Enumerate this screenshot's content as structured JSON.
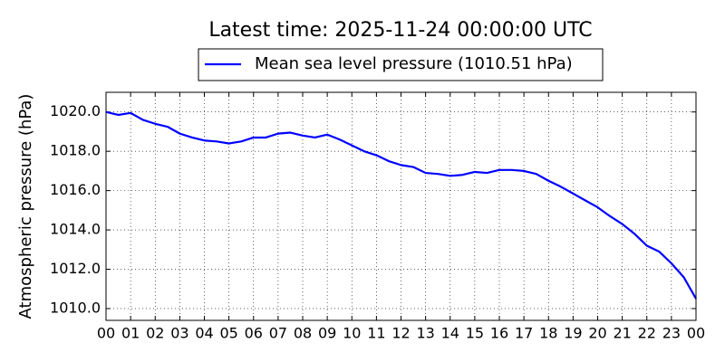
{
  "chart_data": {
    "type": "line",
    "title": "Latest time: 2025-11-24 00:00:00 UTC",
    "y_label": "Atmospheric pressure (hPa)",
    "grid": true,
    "legend": "upper center",
    "x": [
      0,
      0.5,
      1,
      1.5,
      2,
      2.5,
      3,
      3.5,
      4,
      4.5,
      5,
      5.5,
      6,
      6.5,
      7,
      7.5,
      8,
      8.5,
      9,
      9.5,
      10,
      10.5,
      11,
      11.5,
      12,
      12.5,
      13,
      13.5,
      14,
      14.5,
      15,
      15.5,
      16,
      16.5,
      17,
      17.5,
      18,
      18.5,
      19,
      19.5,
      20,
      20.5,
      21,
      21.5,
      22,
      22.5,
      23,
      23.5,
      24
    ],
    "series": [
      {
        "name": "Mean sea level pressure (1010.51 hPa)",
        "color": "#0000ff",
        "values": [
          1020.0,
          1019.85,
          1019.95,
          1019.6,
          1019.4,
          1019.25,
          1018.9,
          1018.7,
          1018.55,
          1018.5,
          1018.4,
          1018.5,
          1018.7,
          1018.7,
          1018.9,
          1018.95,
          1018.8,
          1018.7,
          1018.85,
          1018.6,
          1018.3,
          1018.0,
          1017.8,
          1017.5,
          1017.3,
          1017.2,
          1016.9,
          1016.85,
          1016.75,
          1016.8,
          1016.95,
          1016.9,
          1017.05,
          1017.05,
          1017.0,
          1016.85,
          1016.5,
          1016.2,
          1015.85,
          1015.5,
          1015.15,
          1014.7,
          1014.3,
          1013.8,
          1013.2,
          1012.9,
          1012.3,
          1011.6,
          1010.5
        ]
      }
    ],
    "xlim": [
      0,
      24
    ],
    "xticks": [
      {
        "value": 0,
        "label": "00"
      },
      {
        "value": 1,
        "label": "01"
      },
      {
        "value": 2,
        "label": "02"
      },
      {
        "value": 3,
        "label": "03"
      },
      {
        "value": 4,
        "label": "04"
      },
      {
        "value": 5,
        "label": "05"
      },
      {
        "value": 6,
        "label": "06"
      },
      {
        "value": 7,
        "label": "07"
      },
      {
        "value": 8,
        "label": "08"
      },
      {
        "value": 9,
        "label": "09"
      },
      {
        "value": 10,
        "label": "10"
      },
      {
        "value": 11,
        "label": "11"
      },
      {
        "value": 12,
        "label": "12"
      },
      {
        "value": 13,
        "label": "13"
      },
      {
        "value": 14,
        "label": "14"
      },
      {
        "value": 15,
        "label": "15"
      },
      {
        "value": 16,
        "label": "16"
      },
      {
        "value": 17,
        "label": "17"
      },
      {
        "value": 18,
        "label": "18"
      },
      {
        "value": 19,
        "label": "19"
      },
      {
        "value": 20,
        "label": "20"
      },
      {
        "value": 21,
        "label": "21"
      },
      {
        "value": 22,
        "label": "22"
      },
      {
        "value": 23,
        "label": "23"
      },
      {
        "value": 24,
        "label": "00"
      }
    ],
    "ylim": [
      1009.4,
      1021.0
    ],
    "yticks": [
      {
        "value": 1010,
        "label": "1010.0"
      },
      {
        "value": 1012,
        "label": "1012.0"
      },
      {
        "value": 1014,
        "label": "1014.0"
      },
      {
        "value": 1016,
        "label": "1016.0"
      },
      {
        "value": 1018,
        "label": "1018.0"
      },
      {
        "value": 1020,
        "label": "1020.0"
      }
    ]
  }
}
